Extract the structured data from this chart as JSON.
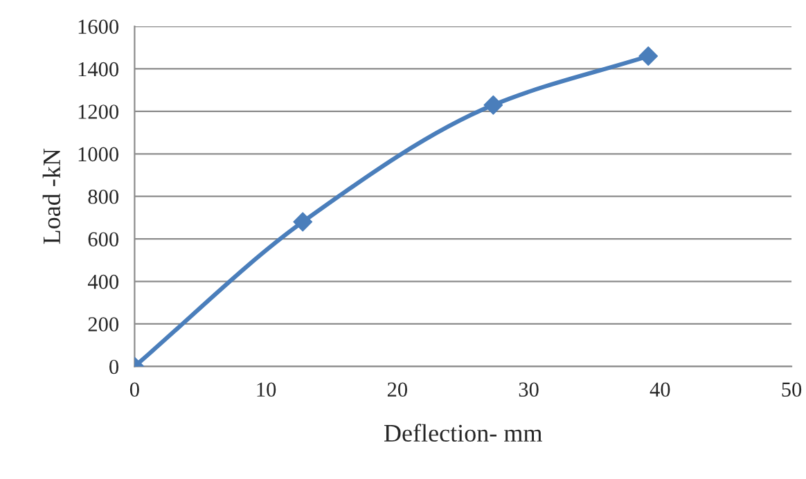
{
  "chart_data": {
    "type": "line",
    "xlabel": "Deflection- mm",
    "ylabel": "Load -kN",
    "x": [
      0,
      12.8,
      27.3,
      39.1
    ],
    "series": [
      {
        "color": "#4a7ebb",
        "values": [
          0,
          680,
          1230,
          1460
        ]
      }
    ],
    "xlim": [
      0,
      50
    ],
    "xticks": [
      0,
      10,
      20,
      30,
      40,
      50
    ],
    "ylim": [
      0,
      1600
    ],
    "yticks": [
      0,
      200,
      400,
      600,
      800,
      1000,
      1200,
      1400,
      1600
    ],
    "grid": "y",
    "marker": "diamond",
    "line_style": "solid"
  }
}
